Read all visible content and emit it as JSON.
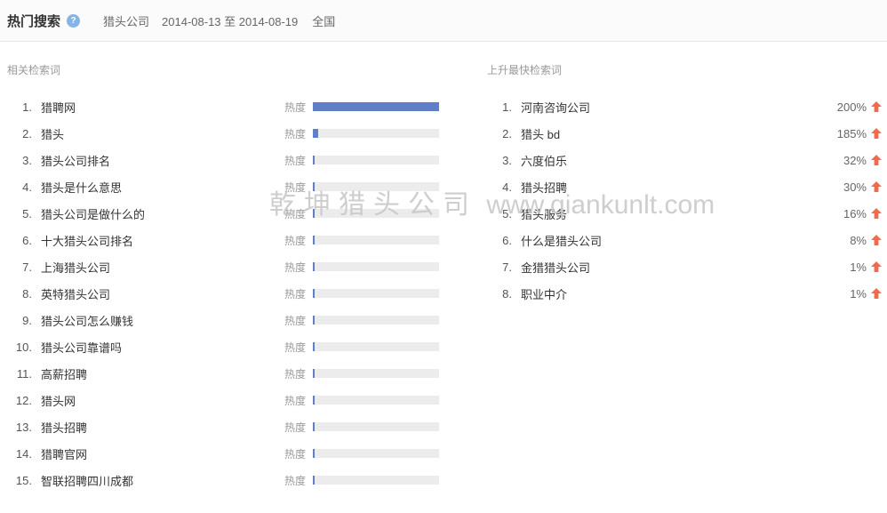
{
  "header": {
    "title": "热门搜索",
    "help": "?",
    "keyword": "猎头公司",
    "date_range": "2014-08-13 至 2014-08-19",
    "region": "全国"
  },
  "related": {
    "section_title": "相关检索词",
    "heat_label": "热度",
    "items": [
      {
        "rank": "1.",
        "keyword": "猎聘网",
        "heat_pct": 100
      },
      {
        "rank": "2.",
        "keyword": "猎头",
        "heat_pct": 4
      },
      {
        "rank": "3.",
        "keyword": "猎头公司排名",
        "heat_pct": 1.3
      },
      {
        "rank": "4.",
        "keyword": "猎头是什么意思",
        "heat_pct": 1.3
      },
      {
        "rank": "5.",
        "keyword": "猎头公司是做什么的",
        "heat_pct": 1.3
      },
      {
        "rank": "6.",
        "keyword": "十大猎头公司排名",
        "heat_pct": 1.3
      },
      {
        "rank": "7.",
        "keyword": "上海猎头公司",
        "heat_pct": 1.3
      },
      {
        "rank": "8.",
        "keyword": "英特猎头公司",
        "heat_pct": 1.3
      },
      {
        "rank": "9.",
        "keyword": "猎头公司怎么赚钱",
        "heat_pct": 1.3
      },
      {
        "rank": "10.",
        "keyword": "猎头公司靠谱吗",
        "heat_pct": 1.3
      },
      {
        "rank": "11.",
        "keyword": "高薪招聘",
        "heat_pct": 1.3
      },
      {
        "rank": "12.",
        "keyword": "猎头网",
        "heat_pct": 1.3
      },
      {
        "rank": "13.",
        "keyword": "猎头招聘",
        "heat_pct": 1.3
      },
      {
        "rank": "14.",
        "keyword": "猎聘官网",
        "heat_pct": 1.3
      },
      {
        "rank": "15.",
        "keyword": "智联招聘四川成都",
        "heat_pct": 1.3
      }
    ]
  },
  "rising": {
    "section_title": "上升最快检索词",
    "items": [
      {
        "rank": "1.",
        "keyword": "河南咨询公司",
        "percent": "200%"
      },
      {
        "rank": "2.",
        "keyword": "猎头 bd",
        "percent": "185%"
      },
      {
        "rank": "3.",
        "keyword": "六度伯乐",
        "percent": "32%"
      },
      {
        "rank": "4.",
        "keyword": "猎头招聘",
        "percent": "30%"
      },
      {
        "rank": "5.",
        "keyword": "猎头服务",
        "percent": "16%"
      },
      {
        "rank": "6.",
        "keyword": "什么是猎头公司",
        "percent": "8%"
      },
      {
        "rank": "7.",
        "keyword": "金猎猎头公司",
        "percent": "1%"
      },
      {
        "rank": "8.",
        "keyword": "职业中介",
        "percent": "1%"
      }
    ]
  },
  "watermark": {
    "cn": "乾坤猎头公司",
    "url": "www.qiankunlt.com"
  },
  "colors": {
    "bar_fill": "#617fc8",
    "bar_track": "#ececec",
    "arrow": "#f26a4d",
    "help_bg": "#86b4e6"
  }
}
